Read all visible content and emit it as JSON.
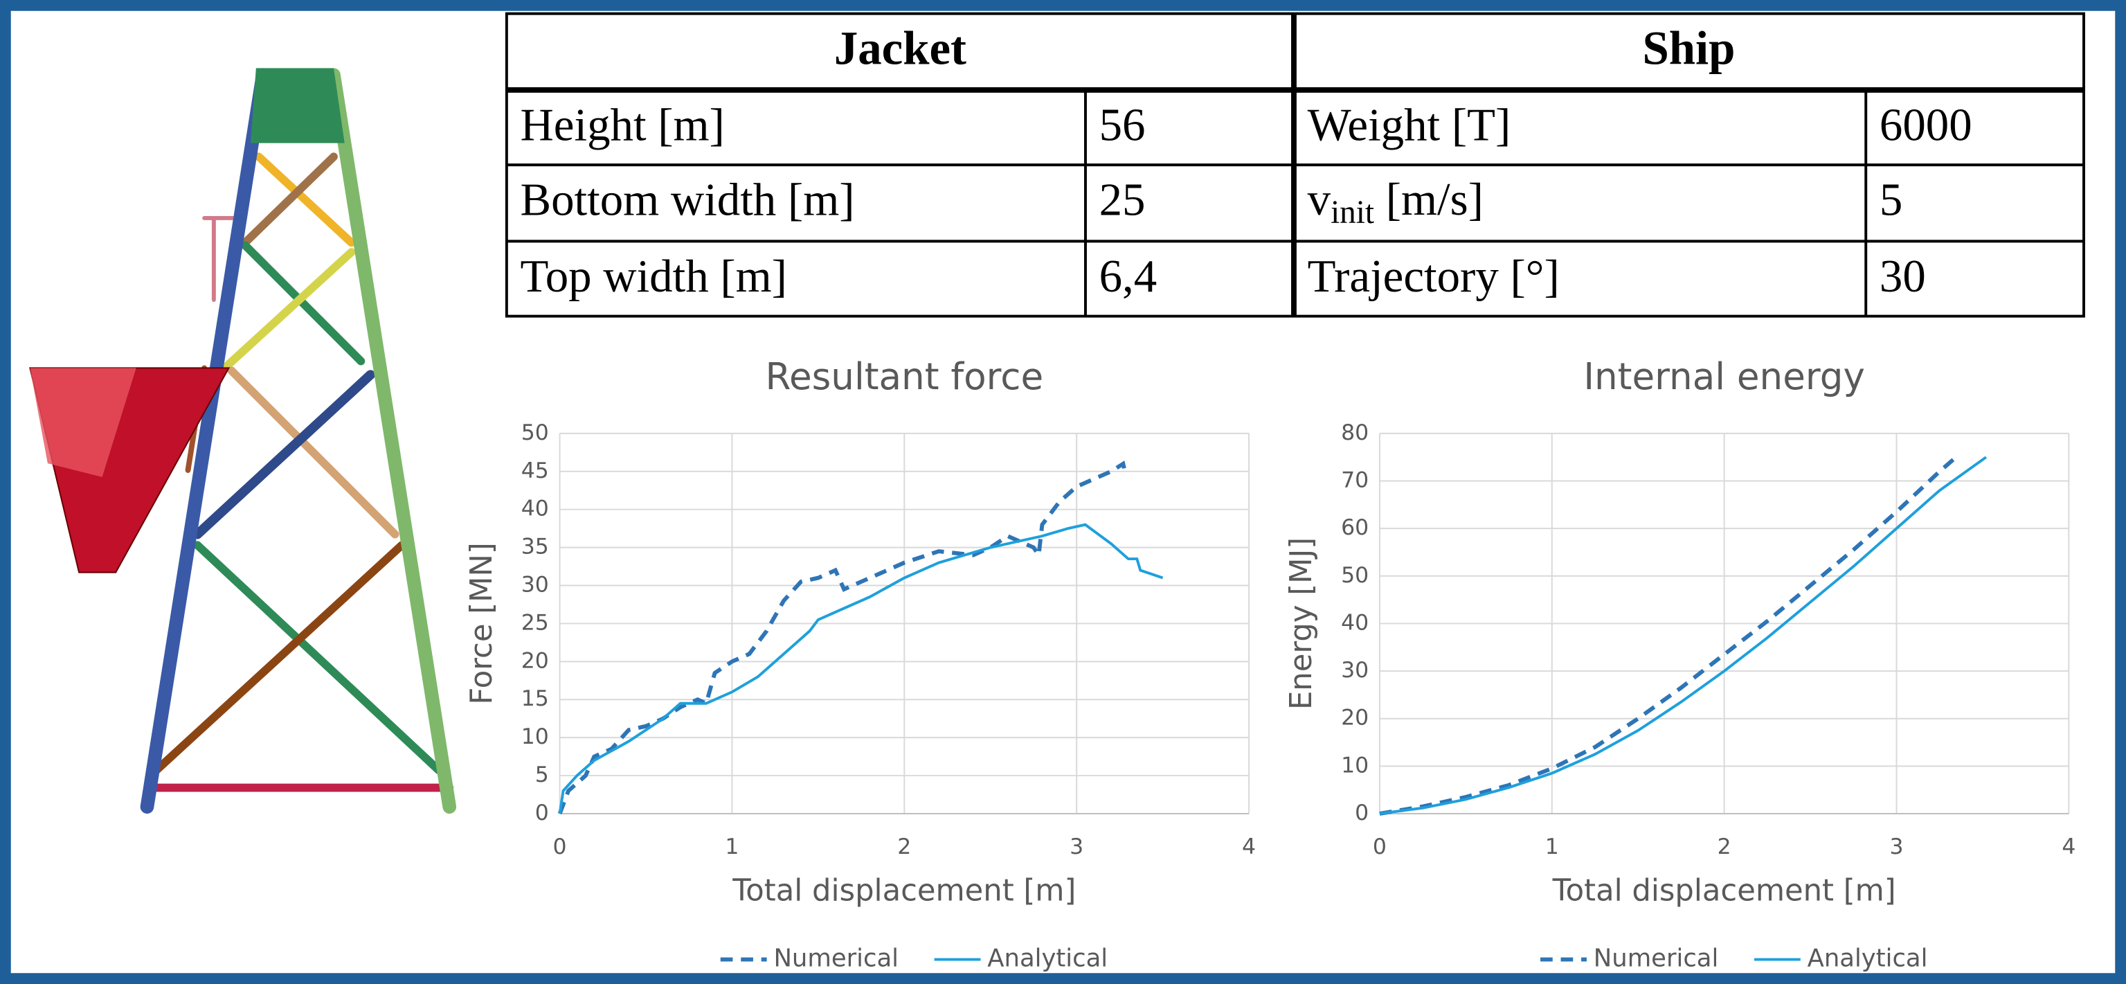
{
  "table": {
    "headers": [
      "Jacket",
      "Ship"
    ],
    "rows": [
      [
        "Height [m]",
        "56",
        "Weight [T]",
        "6000"
      ],
      [
        "Bottom width [m]",
        "25",
        {
          "base": "v",
          "sub": "init",
          "unit": " [m/s]"
        },
        "5"
      ],
      [
        "Top width [m]",
        "6,4",
        "Trajectory [°]",
        "30"
      ]
    ]
  },
  "chart_data": [
    {
      "type": "line",
      "title": "Resultant force",
      "xlabel": "Total displacement [m]",
      "ylabel": "Force [MN]",
      "xlim": [
        0,
        4
      ],
      "xticks": [
        0,
        1,
        2,
        3,
        4
      ],
      "ylim": [
        0,
        50
      ],
      "yticks": [
        0,
        5,
        10,
        15,
        20,
        25,
        30,
        35,
        40,
        45,
        50
      ],
      "grid": true,
      "legend": "bottom",
      "series": [
        {
          "name": "Numerical",
          "color": "#2e75b6",
          "style": "dashed",
          "x": [
            0,
            0.05,
            0.15,
            0.2,
            0.3,
            0.4,
            0.5,
            0.6,
            0.7,
            0.8,
            0.85,
            0.9,
            1.0,
            1.1,
            1.2,
            1.3,
            1.4,
            1.5,
            1.6,
            1.65,
            1.8,
            2.0,
            2.2,
            2.4,
            2.5,
            2.6,
            2.75,
            2.78,
            2.8,
            2.9,
            3.0,
            3.1,
            3.2,
            3.27,
            3.28
          ],
          "values": [
            0,
            3,
            5,
            7.5,
            8.5,
            11,
            11.5,
            12.5,
            14,
            15,
            14.5,
            18.5,
            20,
            21,
            24,
            28,
            30.5,
            31,
            32,
            29.5,
            31,
            33,
            34.5,
            34,
            35,
            36.5,
            35,
            34,
            38,
            41,
            43,
            44,
            45,
            46,
            45
          ]
        },
        {
          "name": "Analytical",
          "color": "#1ea0dc",
          "style": "solid",
          "x": [
            0,
            0.02,
            0.1,
            0.2,
            0.4,
            0.6,
            0.7,
            0.85,
            1.0,
            1.15,
            1.3,
            1.45,
            1.5,
            1.6,
            1.8,
            2.0,
            2.2,
            2.5,
            2.8,
            2.95,
            3.05,
            3.2,
            3.3,
            3.35,
            3.37,
            3.5
          ],
          "values": [
            0,
            3,
            5,
            7,
            9.5,
            12.5,
            14.5,
            14.5,
            16,
            18,
            21,
            24,
            25.5,
            26.5,
            28.5,
            31,
            33,
            35,
            36.5,
            37.5,
            38,
            35.5,
            33.5,
            33.5,
            32,
            31
          ]
        }
      ]
    },
    {
      "type": "line",
      "title": "Internal energy",
      "xlabel": "Total displacement [m]",
      "ylabel": "Energy [MJ]",
      "xlim": [
        0,
        4
      ],
      "xticks": [
        0,
        1,
        2,
        3,
        4
      ],
      "ylim": [
        0,
        80
      ],
      "yticks": [
        0,
        10,
        20,
        30,
        40,
        50,
        60,
        70,
        80
      ],
      "grid": true,
      "legend": "bottom",
      "series": [
        {
          "name": "Numerical",
          "color": "#2e75b6",
          "style": "dashed",
          "x": [
            0,
            0.25,
            0.5,
            0.75,
            1,
            1.25,
            1.5,
            1.75,
            2,
            2.25,
            2.5,
            2.75,
            3,
            3.25,
            3.33
          ],
          "values": [
            0,
            1.5,
            3.5,
            6,
            9.5,
            14,
            20,
            26.5,
            33.5,
            40.5,
            48,
            55.5,
            63.5,
            72,
            74.5
          ]
        },
        {
          "name": "Analytical",
          "color": "#1ea0dc",
          "style": "solid",
          "x": [
            0,
            0.25,
            0.5,
            0.75,
            1,
            1.25,
            1.5,
            1.75,
            2,
            2.25,
            2.5,
            2.75,
            3,
            3.25,
            3.52
          ],
          "values": [
            0,
            1.2,
            3,
            5.5,
            8.5,
            12.5,
            17.5,
            23.5,
            30,
            37,
            44.5,
            52,
            60,
            68,
            75
          ]
        }
      ]
    }
  ]
}
